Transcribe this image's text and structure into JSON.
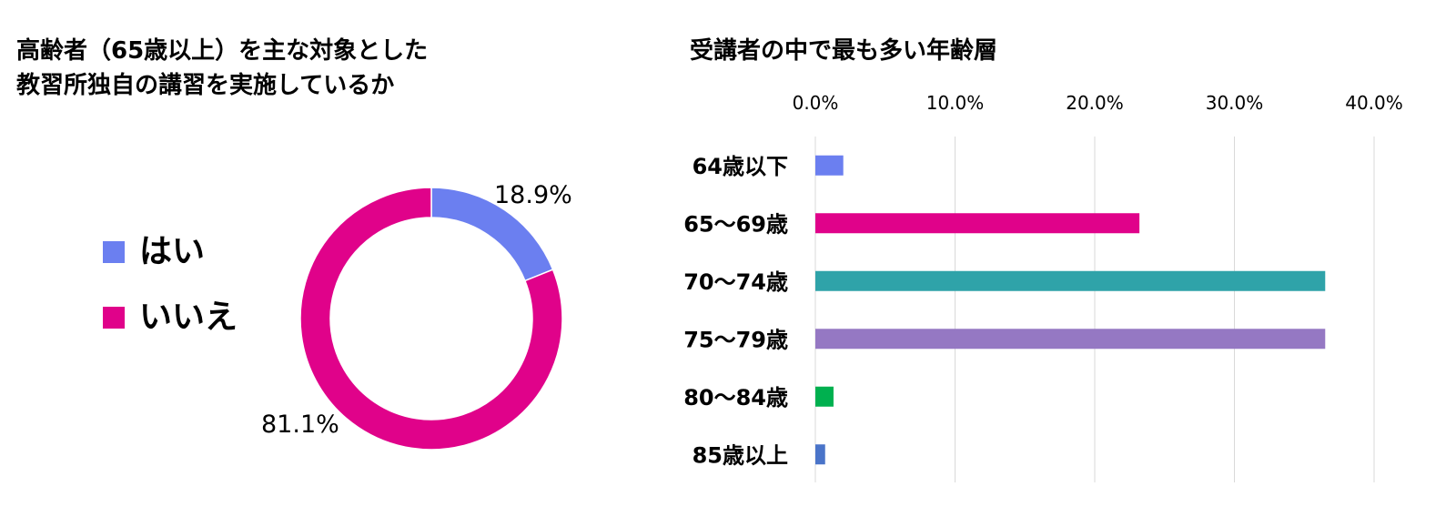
{
  "chart_data": [
    {
      "type": "pie",
      "title_lines": [
        "高齢者（65歳以上）を主な対象とした",
        "教習所独自の講習を実施しているか"
      ],
      "categories": [
        "はい",
        "いいえ"
      ],
      "values": [
        18.9,
        81.1
      ],
      "data_labels": [
        "18.9%",
        "81.1%"
      ],
      "colors": [
        "#6b7ff0",
        "#e0028a"
      ],
      "donut": true,
      "legend": "left"
    },
    {
      "type": "bar",
      "orientation": "horizontal",
      "title": "受講者の中で最も多い年齢層",
      "categories": [
        "64歳以下",
        "65〜69歳",
        "70〜74歳",
        "75〜79歳",
        "80〜84歳",
        "85歳以上"
      ],
      "values": [
        2.0,
        23.2,
        36.5,
        36.5,
        1.3,
        0.7
      ],
      "colors": [
        "#6b7ff0",
        "#e0028a",
        "#2fa3a9",
        "#9578c3",
        "#00b04f",
        "#4a74c9"
      ],
      "xlim": [
        0,
        40
      ],
      "x_ticks": [
        "0.0%",
        "10.0%",
        "20.0%",
        "30.0%",
        "40.0%"
      ],
      "x_tick_values": [
        0,
        10,
        20,
        30,
        40
      ],
      "grid": true
    }
  ]
}
